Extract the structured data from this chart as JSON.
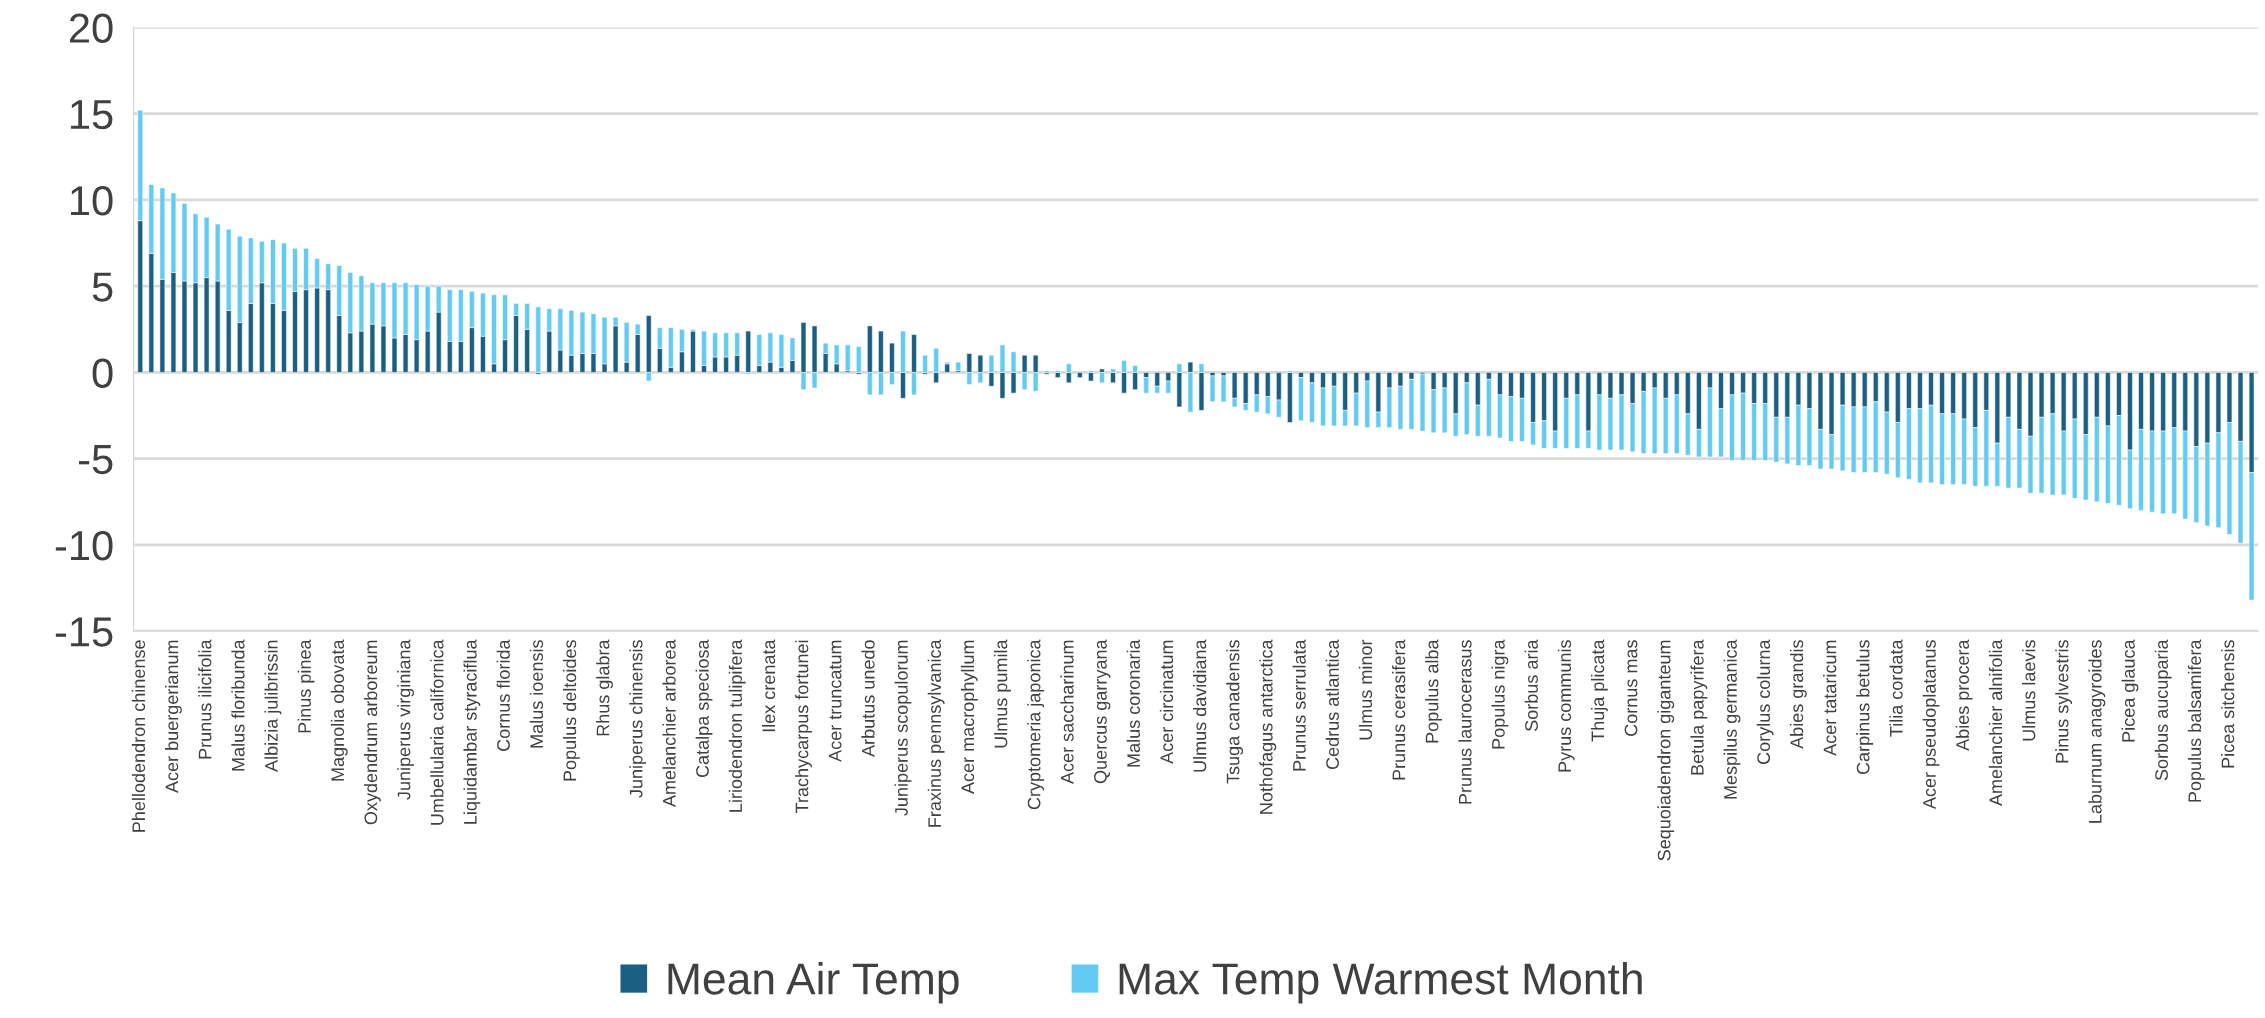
{
  "chart_data": {
    "type": "bar",
    "stacked": true,
    "categories": [
      "Phellodendron chinense",
      null,
      null,
      "Acer buergerianum",
      null,
      null,
      "Prunus ilicifolia",
      null,
      null,
      "Malus floribunda",
      null,
      null,
      "Albizia julibrissin",
      null,
      null,
      "Pinus pinea",
      null,
      null,
      "Magnolia obovata",
      null,
      null,
      "Oxydendrum arboreum",
      null,
      null,
      "Juniperus virginiana",
      null,
      null,
      "Umbellularia californica",
      null,
      null,
      "Liquidambar styraciflua",
      null,
      null,
      "Cornus florida",
      null,
      null,
      "Malus ioensis",
      null,
      null,
      "Populus deltoides",
      null,
      null,
      "Rhus glabra",
      null,
      null,
      "Juniperus chinensis",
      null,
      null,
      "Amelanchier arborea",
      null,
      null,
      "Catalpa speciosa",
      null,
      null,
      "Liriodendron tulipifera",
      null,
      null,
      "Ilex crenata",
      null,
      null,
      "Trachycarpus fortunei",
      null,
      null,
      "Acer truncatum",
      null,
      null,
      "Arbutus unedo",
      null,
      null,
      "Juniperus scopulorum",
      null,
      null,
      "Fraxinus pennsylvanica",
      null,
      null,
      "Acer macrophyllum",
      null,
      null,
      "Ulmus pumila",
      null,
      null,
      "Cryptomeria japonica",
      null,
      null,
      "Acer saccharinum",
      null,
      null,
      "Quercus garryana",
      null,
      null,
      "Malus coronaria",
      null,
      null,
      "Acer circinatum",
      null,
      null,
      "Ulmus davidiana",
      null,
      null,
      "Tsuga canadensis",
      null,
      null,
      "Nothofagus antarctica",
      null,
      null,
      "Prunus serrulata",
      null,
      null,
      "Cedrus atlantica",
      null,
      null,
      "Ulmus minor",
      null,
      null,
      "Prunus cerasifera",
      null,
      null,
      "Populus alba",
      null,
      null,
      "Prunus laurocerasus",
      null,
      null,
      "Populus nigra",
      null,
      null,
      "Sorbus aria",
      null,
      null,
      "Pyrus communis",
      null,
      null,
      "Thuja plicata",
      null,
      null,
      "Cornus mas",
      null,
      null,
      "Sequoiadendron giganteum",
      null,
      null,
      "Betula papyrifera",
      null,
      null,
      "Mespilus germanica",
      null,
      null,
      "Corylus colurna",
      null,
      null,
      "Abies grandis",
      null,
      null,
      "Acer tataricum",
      null,
      null,
      "Carpinus betulus",
      null,
      null,
      "Tilia cordata",
      null,
      null,
      "Acer pseudoplatanus",
      null,
      null,
      "Abies procera",
      null,
      null,
      "Amelanchier alnifolia",
      null,
      null,
      "Ulmus laevis",
      null,
      null,
      "Pinus sylvestris",
      null,
      null,
      "Laburnum anagyroides",
      null,
      null,
      "Picea glauca",
      null,
      null,
      "Sorbus aucuparia",
      null,
      null,
      "Populus balsamifera",
      null,
      null,
      "Picea sitchensis",
      null,
      null
    ],
    "series": [
      {
        "name": "Mean Air Temp",
        "color": "#1b5f82",
        "values": [
          8.8,
          6.9,
          5.4,
          5.8,
          5.3,
          5.2,
          5.5,
          5.3,
          3.6,
          2.9,
          4.0,
          5.2,
          4.0,
          3.6,
          4.7,
          4.8,
          4.9,
          4.8,
          3.3,
          2.3,
          2.4,
          2.8,
          2.7,
          2.0,
          2.2,
          1.9,
          2.4,
          3.5,
          1.8,
          1.8,
          2.6,
          2.1,
          0.5,
          1.9,
          3.3,
          2.5,
          -0.1,
          2.4,
          1.3,
          1.0,
          1.1,
          1.1,
          0.5,
          2.7,
          0.6,
          2.2,
          3.3,
          1.4,
          0.3,
          1.2,
          2.4,
          0.4,
          0.9,
          0.9,
          1.0,
          2.4,
          0.4,
          0.6,
          0.3,
          0.7,
          2.9,
          2.7,
          1.1,
          0.5,
          0.1,
          -0.1,
          2.7,
          2.4,
          1.7,
          -1.5,
          2.2,
          -0.1,
          -0.6,
          0.5,
          0.1,
          1.1,
          1.0,
          -0.8,
          -1.5,
          -1.2,
          1.0,
          1.0,
          -0.1,
          -0.3,
          -0.6,
          -0.3,
          -0.5,
          0.2,
          -0.6,
          -1.2,
          -1.0,
          -0.3,
          -0.8,
          -0.5,
          -2.0,
          0.6,
          -2.2,
          -0.2,
          -0.2,
          -1.5,
          -1.8,
          -1.3,
          -1.4,
          -1.6,
          -2.9,
          -0.3,
          -0.6,
          -0.9,
          -0.8,
          -2.2,
          -1.2,
          -0.5,
          -2.3,
          -0.9,
          -0.8,
          -0.4,
          -0.1,
          -1.0,
          -0.9,
          -2.4,
          -0.6,
          -1.9,
          -0.4,
          -1.3,
          -1.4,
          -1.5,
          -2.9,
          -2.8,
          -3.4,
          -1.5,
          -1.3,
          -3.4,
          -1.3,
          -1.5,
          -1.3,
          -1.8,
          -1.1,
          -0.9,
          -1.5,
          -1.3,
          -2.4,
          -3.3,
          -0.9,
          -2.1,
          -1.3,
          -1.2,
          -1.8,
          -1.8,
          -2.6,
          -2.6,
          -1.9,
          -2.1,
          -3.3,
          -3.6,
          -1.9,
          -2.0,
          -2.0,
          -1.7,
          -2.3,
          -2.9,
          -2.1,
          -2.1,
          -1.9,
          -2.4,
          -2.4,
          -2.7,
          -3.2,
          -2.2,
          -4.1,
          -2.6,
          -3.3,
          -3.7,
          -2.6,
          -2.4,
          -3.4,
          -2.7,
          -3.6,
          -2.6,
          -3.1,
          -2.5,
          -4.5,
          -3.3,
          -3.4,
          -3.4,
          -3.2,
          -3.4,
          -4.3,
          -4.1,
          -3.5,
          -2.9,
          -4.0,
          -5.8
        ]
      },
      {
        "name": "Max Temp Warmest Month",
        "color": "#63cbf3",
        "values": [
          6.4,
          4.0,
          5.3,
          4.6,
          4.5,
          4.0,
          3.5,
          3.3,
          4.7,
          5.0,
          3.8,
          2.4,
          3.7,
          3.9,
          2.5,
          2.4,
          1.7,
          1.5,
          2.9,
          3.5,
          3.2,
          2.4,
          2.5,
          3.2,
          3.0,
          3.2,
          2.6,
          1.5,
          3.0,
          3.0,
          2.1,
          2.5,
          4.0,
          2.6,
          0.7,
          1.5,
          3.8,
          1.3,
          2.4,
          2.6,
          2.4,
          2.3,
          2.7,
          0.5,
          2.3,
          0.6,
          -0.5,
          1.2,
          2.3,
          1.3,
          0.1,
          2.0,
          1.4,
          1.4,
          1.3,
          -0.1,
          1.8,
          1.7,
          1.9,
          1.3,
          -1.0,
          -0.9,
          0.6,
          1.1,
          1.5,
          1.5,
          -1.3,
          -1.3,
          -0.7,
          2.4,
          -1.3,
          1.0,
          1.4,
          0.1,
          0.5,
          -0.7,
          -0.6,
          1.0,
          1.6,
          1.2,
          -1.0,
          -1.1,
          0.1,
          0.1,
          0.5,
          null,
          0.1,
          -0.6,
          0.2,
          0.7,
          0.4,
          -0.9,
          -0.4,
          -0.7,
          0.5,
          -2.3,
          0.5,
          -1.5,
          -1.5,
          -0.5,
          -0.4,
          -1.0,
          -1.0,
          -1.0,
          0.1,
          -2.5,
          -2.3,
          -2.2,
          -2.3,
          -0.9,
          -1.9,
          -2.7,
          -0.9,
          -2.3,
          -2.5,
          -2.9,
          -3.3,
          -2.5,
          -2.6,
          -1.3,
          -3.0,
          -1.8,
          -3.3,
          -2.5,
          -2.6,
          -2.5,
          -1.3,
          -1.6,
          -1.0,
          -2.9,
          -3.1,
          -1.0,
          -3.2,
          -3.0,
          -3.2,
          -2.8,
          -3.6,
          -3.8,
          -3.2,
          -3.4,
          -2.4,
          -1.6,
          -4.0,
          -2.8,
          -3.8,
          -3.9,
          -3.3,
          -3.3,
          -2.6,
          -2.7,
          -3.5,
          -3.3,
          -2.3,
          -2.0,
          -3.8,
          -3.8,
          -3.8,
          -4.1,
          -3.6,
          -3.2,
          -4.1,
          -4.3,
          -4.5,
          -4.1,
          -4.1,
          -3.8,
          -3.4,
          -4.4,
          -2.5,
          -4.1,
          -3.4,
          -3.3,
          -4.4,
          -4.7,
          -3.7,
          -4.6,
          -3.8,
          -4.9,
          -4.5,
          -5.2,
          -3.4,
          -4.7,
          -4.7,
          -4.8,
          -5.0,
          -5.1,
          -4.4,
          -4.8,
          -5.5,
          -6.5,
          -5.9,
          -7.4
        ]
      }
    ],
    "ylim": [
      -15,
      20
    ],
    "yticks": [
      -15,
      -10,
      -5,
      0,
      5,
      10,
      15,
      20
    ],
    "grid": "y",
    "legend": "bottom"
  }
}
